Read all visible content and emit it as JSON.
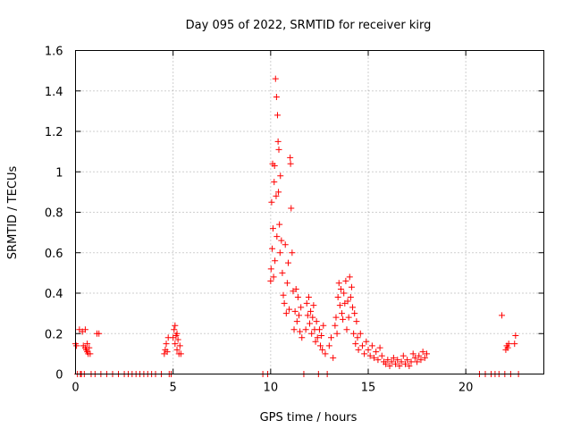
{
  "chart_data": {
    "type": "scatter",
    "title": "Day 095 of 2022, SRMTID for receiver kirg",
    "xlabel": "GPS time / hours",
    "ylabel": "SRMTID / TECUs",
    "xlim": [
      0,
      24
    ],
    "ylim": [
      0,
      1.6
    ],
    "grid": true,
    "marker": "+",
    "color": "#ff0000",
    "x_ticks": [
      0,
      5,
      10,
      15,
      20
    ],
    "x_tick_labels": [
      "0",
      "5",
      "10",
      "15",
      "20"
    ],
    "y_ticks": [
      0,
      0.2,
      0.4,
      0.6,
      0.8,
      1.0,
      1.2,
      1.4,
      1.6
    ],
    "y_tick_labels": [
      "0",
      "0.2",
      "0.4",
      "0.6",
      "0.8",
      "1",
      "1.2",
      "1.4",
      "1.6"
    ],
    "series": [
      {
        "name": "SRMTID",
        "points": [
          [
            0.0,
            0.15
          ],
          [
            0.05,
            0.14
          ],
          [
            0.1,
            0.0
          ],
          [
            0.2,
            0.22
          ],
          [
            0.25,
            0.0
          ],
          [
            0.3,
            0.0
          ],
          [
            0.35,
            0.21
          ],
          [
            0.4,
            0.14
          ],
          [
            0.45,
            0.0
          ],
          [
            0.5,
            0.22
          ],
          [
            0.5,
            0.13
          ],
          [
            0.55,
            0.12
          ],
          [
            0.6,
            0.15
          ],
          [
            0.6,
            0.11
          ],
          [
            0.65,
            0.1
          ],
          [
            0.7,
            0.13
          ],
          [
            0.75,
            0.1
          ],
          [
            0.8,
            0.0
          ],
          [
            1.0,
            0.0
          ],
          [
            1.1,
            0.2
          ],
          [
            1.2,
            0.2
          ],
          [
            1.3,
            0.0
          ],
          [
            1.6,
            0.0
          ],
          [
            1.9,
            0.0
          ],
          [
            2.2,
            0.0
          ],
          [
            2.5,
            0.0
          ],
          [
            2.7,
            0.0
          ],
          [
            2.9,
            0.0
          ],
          [
            3.1,
            0.0
          ],
          [
            3.3,
            0.0
          ],
          [
            3.5,
            0.0
          ],
          [
            3.7,
            0.0
          ],
          [
            3.9,
            0.0
          ],
          [
            4.1,
            0.0
          ],
          [
            4.4,
            0.0
          ],
          [
            4.55,
            0.1
          ],
          [
            4.6,
            0.12
          ],
          [
            4.65,
            0.15
          ],
          [
            4.7,
            0.11
          ],
          [
            4.75,
            0.18
          ],
          [
            4.8,
            0.0
          ],
          [
            4.9,
            0.0
          ],
          [
            5.0,
            0.18
          ],
          [
            5.05,
            0.22
          ],
          [
            5.1,
            0.15
          ],
          [
            5.1,
            0.24
          ],
          [
            5.15,
            0.19
          ],
          [
            5.2,
            0.12
          ],
          [
            5.2,
            0.2
          ],
          [
            5.25,
            0.17
          ],
          [
            5.3,
            0.1
          ],
          [
            5.35,
            0.14
          ],
          [
            5.4,
            0.1
          ],
          [
            9.6,
            0.0
          ],
          [
            9.85,
            0.0
          ],
          [
            10.0,
            0.46
          ],
          [
            10.02,
            0.52
          ],
          [
            10.05,
            0.85
          ],
          [
            10.08,
            0.62
          ],
          [
            10.1,
            1.04
          ],
          [
            10.12,
            0.72
          ],
          [
            10.15,
            0.48
          ],
          [
            10.18,
            0.95
          ],
          [
            10.2,
            1.03
          ],
          [
            10.22,
            0.56
          ],
          [
            10.25,
            1.46
          ],
          [
            10.28,
            0.88
          ],
          [
            10.3,
            1.37
          ],
          [
            10.32,
            0.68
          ],
          [
            10.35,
            1.28
          ],
          [
            10.38,
            1.15
          ],
          [
            10.4,
            0.9
          ],
          [
            10.42,
            1.11
          ],
          [
            10.45,
            0.74
          ],
          [
            10.48,
            0.6
          ],
          [
            10.5,
            0.98
          ],
          [
            10.55,
            0.66
          ],
          [
            10.6,
            0.5
          ],
          [
            10.65,
            0.39
          ],
          [
            10.7,
            0.35
          ],
          [
            10.75,
            0.64
          ],
          [
            10.8,
            0.3
          ],
          [
            10.85,
            0.45
          ],
          [
            10.9,
            0.55
          ],
          [
            10.95,
            0.32
          ],
          [
            11.0,
            1.07
          ],
          [
            11.02,
            1.04
          ],
          [
            11.05,
            0.82
          ],
          [
            11.1,
            0.6
          ],
          [
            11.15,
            0.41
          ],
          [
            11.2,
            0.22
          ],
          [
            11.25,
            0.31
          ],
          [
            11.3,
            0.42
          ],
          [
            11.35,
            0.26
          ],
          [
            11.4,
            0.38
          ],
          [
            11.45,
            0.29
          ],
          [
            11.5,
            0.21
          ],
          [
            11.55,
            0.33
          ],
          [
            11.6,
            0.18
          ],
          [
            11.7,
            0.0
          ],
          [
            11.8,
            0.22
          ],
          [
            11.85,
            0.35
          ],
          [
            11.9,
            0.29
          ],
          [
            11.95,
            0.38
          ],
          [
            12.0,
            0.25
          ],
          [
            12.05,
            0.31
          ],
          [
            12.1,
            0.2
          ],
          [
            12.15,
            0.28
          ],
          [
            12.2,
            0.34
          ],
          [
            12.25,
            0.22
          ],
          [
            12.3,
            0.16
          ],
          [
            12.35,
            0.26
          ],
          [
            12.4,
            0.18
          ],
          [
            12.45,
            0.0
          ],
          [
            12.5,
            0.22
          ],
          [
            12.55,
            0.14
          ],
          [
            12.6,
            0.19
          ],
          [
            12.65,
            0.12
          ],
          [
            12.7,
            0.24
          ],
          [
            12.8,
            0.1
          ],
          [
            12.9,
            0.0
          ],
          [
            13.0,
            0.14
          ],
          [
            13.1,
            0.18
          ],
          [
            13.2,
            0.08
          ],
          [
            13.3,
            0.24
          ],
          [
            13.35,
            0.28
          ],
          [
            13.4,
            0.2
          ],
          [
            13.45,
            0.38
          ],
          [
            13.5,
            0.45
          ],
          [
            13.55,
            0.34
          ],
          [
            13.6,
            0.42
          ],
          [
            13.65,
            0.3
          ],
          [
            13.7,
            0.27
          ],
          [
            13.75,
            0.4
          ],
          [
            13.8,
            0.35
          ],
          [
            13.85,
            0.46
          ],
          [
            13.9,
            0.22
          ],
          [
            13.95,
            0.36
          ],
          [
            14.0,
            0.28
          ],
          [
            14.05,
            0.48
          ],
          [
            14.1,
            0.38
          ],
          [
            14.15,
            0.43
          ],
          [
            14.2,
            0.33
          ],
          [
            14.25,
            0.2
          ],
          [
            14.3,
            0.3
          ],
          [
            14.35,
            0.15
          ],
          [
            14.4,
            0.26
          ],
          [
            14.45,
            0.18
          ],
          [
            14.5,
            0.12
          ],
          [
            14.6,
            0.2
          ],
          [
            14.7,
            0.14
          ],
          [
            14.8,
            0.1
          ],
          [
            14.9,
            0.16
          ],
          [
            15.0,
            0.12
          ],
          [
            15.1,
            0.09
          ],
          [
            15.2,
            0.14
          ],
          [
            15.3,
            0.08
          ],
          [
            15.4,
            0.11
          ],
          [
            15.5,
            0.07
          ],
          [
            15.6,
            0.13
          ],
          [
            15.7,
            0.09
          ],
          [
            15.8,
            0.06
          ],
          [
            15.9,
            0.05
          ],
          [
            16.0,
            0.07
          ],
          [
            16.1,
            0.04
          ],
          [
            16.2,
            0.06
          ],
          [
            16.3,
            0.08
          ],
          [
            16.4,
            0.05
          ],
          [
            16.5,
            0.07
          ],
          [
            16.6,
            0.04
          ],
          [
            16.7,
            0.06
          ],
          [
            16.8,
            0.09
          ],
          [
            16.9,
            0.05
          ],
          [
            17.0,
            0.07
          ],
          [
            17.1,
            0.04
          ],
          [
            17.2,
            0.06
          ],
          [
            17.3,
            0.1
          ],
          [
            17.4,
            0.08
          ],
          [
            17.5,
            0.06
          ],
          [
            17.6,
            0.09
          ],
          [
            17.7,
            0.07
          ],
          [
            17.8,
            0.11
          ],
          [
            17.9,
            0.08
          ],
          [
            18.0,
            0.1
          ],
          [
            20.7,
            0.0
          ],
          [
            21.0,
            0.0
          ],
          [
            21.3,
            0.0
          ],
          [
            21.5,
            0.0
          ],
          [
            21.7,
            0.0
          ],
          [
            21.85,
            0.29
          ],
          [
            22.0,
            0.0
          ],
          [
            22.05,
            0.12
          ],
          [
            22.1,
            0.14
          ],
          [
            22.15,
            0.13
          ],
          [
            22.2,
            0.15
          ],
          [
            22.3,
            0.0
          ],
          [
            22.5,
            0.15
          ],
          [
            22.55,
            0.19
          ],
          [
            22.7,
            0.0
          ]
        ]
      }
    ]
  }
}
